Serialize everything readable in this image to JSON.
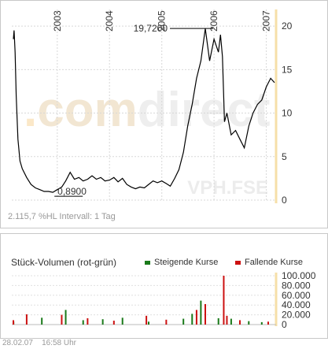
{
  "chart_data": [
    {
      "type": "line",
      "title": "",
      "xlabel": "",
      "ylabel": "",
      "watermark": "comdirect",
      "symbol": "VPH.FSE",
      "x_ticks": [
        "2003",
        "2004",
        "2005",
        "2006",
        "2007"
      ],
      "y_ticks": [
        0,
        5,
        10,
        15,
        20
      ],
      "ylim": [
        0,
        22
      ],
      "xlim": [
        "2002-02-28",
        "2007-02-28"
      ],
      "grid": true,
      "series": [
        {
          "values": [
            [
              "2002-02-28",
              18.5
            ],
            [
              "2002-03-05",
              19.5
            ],
            [
              "2002-03-12",
              17.0
            ],
            [
              "2002-03-20",
              12.0
            ],
            [
              "2002-04-01",
              7.0
            ],
            [
              "2002-04-15",
              4.5
            ],
            [
              "2002-05-01",
              3.6
            ],
            [
              "2002-06-01",
              2.6
            ],
            [
              "2002-07-01",
              1.8
            ],
            [
              "2002-08-01",
              1.4
            ],
            [
              "2002-09-01",
              1.2
            ],
            [
              "2002-10-01",
              1.0
            ],
            [
              "2002-11-01",
              1.0
            ],
            [
              "2002-12-01",
              0.9
            ],
            [
              "2003-01-01",
              1.2
            ],
            [
              "2003-02-01",
              1.5
            ],
            [
              "2003-03-01",
              2.2
            ],
            [
              "2003-04-01",
              3.2
            ],
            [
              "2003-05-01",
              2.4
            ],
            [
              "2003-06-01",
              2.6
            ],
            [
              "2003-07-01",
              2.2
            ],
            [
              "2003-08-01",
              2.4
            ],
            [
              "2003-09-01",
              2.8
            ],
            [
              "2003-10-01",
              2.4
            ],
            [
              "2003-11-01",
              2.6
            ],
            [
              "2003-12-01",
              2.2
            ],
            [
              "2004-01-01",
              2.3
            ],
            [
              "2004-02-01",
              2.6
            ],
            [
              "2004-03-01",
              2.1
            ],
            [
              "2004-04-01",
              2.5
            ],
            [
              "2004-05-01",
              1.8
            ],
            [
              "2004-06-01",
              1.5
            ],
            [
              "2004-07-01",
              1.3
            ],
            [
              "2004-08-01",
              1.5
            ],
            [
              "2004-09-01",
              1.4
            ],
            [
              "2004-10-01",
              1.8
            ],
            [
              "2004-11-01",
              2.2
            ],
            [
              "2004-12-01",
              2.0
            ],
            [
              "2005-01-01",
              2.2
            ],
            [
              "2005-02-01",
              1.9
            ],
            [
              "2005-03-01",
              1.6
            ],
            [
              "2005-04-01",
              2.5
            ],
            [
              "2005-05-01",
              3.5
            ],
            [
              "2005-06-01",
              5.5
            ],
            [
              "2005-07-01",
              8.5
            ],
            [
              "2005-08-01",
              11.0
            ],
            [
              "2005-09-01",
              14.0
            ],
            [
              "2005-10-01",
              16.0
            ],
            [
              "2005-11-01",
              19.72
            ],
            [
              "2005-12-01",
              16.0
            ],
            [
              "2006-01-01",
              18.5
            ],
            [
              "2006-02-01",
              17.0
            ],
            [
              "2006-02-15",
              19.0
            ],
            [
              "2006-03-01",
              16.5
            ],
            [
              "2006-03-15",
              9.0
            ],
            [
              "2006-04-01",
              10.0
            ],
            [
              "2006-05-01",
              7.5
            ],
            [
              "2006-06-01",
              8.0
            ],
            [
              "2006-07-01",
              7.0
            ],
            [
              "2006-08-01",
              6.0
            ],
            [
              "2006-09-01",
              8.5
            ],
            [
              "2006-10-01",
              10.0
            ],
            [
              "2006-11-01",
              11.0
            ],
            [
              "2006-12-01",
              11.5
            ],
            [
              "2007-01-01",
              13.0
            ],
            [
              "2007-02-01",
              14.0
            ],
            [
              "2007-02-28",
              13.5
            ]
          ]
        }
      ],
      "annotations": [
        {
          "label": "19,7200",
          "value": 19.72,
          "date": "2005-11-01"
        },
        {
          "label": "0,8900",
          "value": 0.89,
          "date": "2002-12-01"
        }
      ],
      "footer_note": "2.115,7 %HL  Intervall: 1 Tag"
    },
    {
      "type": "bar",
      "title": "Stück-Volumen (rot-grün)",
      "y_ticks": [
        "0",
        "20.000",
        "40.000",
        "60.000",
        "80.000",
        "100.000"
      ],
      "ylim": [
        0,
        100000
      ],
      "grid": true,
      "legend_placement": "top-right",
      "series": [
        {
          "name": "Steigende Kurse",
          "color": "#1a7a1a",
          "values": [
            [
              "2002-03-01",
              6000
            ],
            [
              "2002-09-15",
              14000
            ],
            [
              "2003-03-01",
              30000
            ],
            [
              "2003-07-01",
              9000
            ],
            [
              "2003-11-15",
              11000
            ],
            [
              "2004-04-01",
              14000
            ],
            [
              "2004-10-01",
              6000
            ],
            [
              "2005-06-01",
              12000
            ],
            [
              "2005-08-01",
              22000
            ],
            [
              "2005-10-01",
              49000
            ],
            [
              "2006-02-01",
              13000
            ],
            [
              "2006-05-01",
              12000
            ],
            [
              "2006-09-01",
              7000
            ],
            [
              "2006-12-01",
              5000
            ]
          ]
        },
        {
          "name": "Fallende Kurse",
          "color": "#cc1111",
          "values": [
            [
              "2002-02-28",
              9000
            ],
            [
              "2002-06-01",
              21000
            ],
            [
              "2003-02-01",
              20000
            ],
            [
              "2003-08-01",
              13000
            ],
            [
              "2004-02-01",
              8000
            ],
            [
              "2004-09-15",
              18000
            ],
            [
              "2005-02-01",
              10000
            ],
            [
              "2005-09-01",
              30000
            ],
            [
              "2005-11-01",
              42000
            ],
            [
              "2006-03-10",
              100000
            ],
            [
              "2006-04-01",
              18000
            ],
            [
              "2006-07-01",
              9000
            ],
            [
              "2007-01-15",
              6000
            ]
          ]
        }
      ]
    }
  ],
  "footer": {
    "date": "28.02.07",
    "time": "16:58 Uhr"
  }
}
